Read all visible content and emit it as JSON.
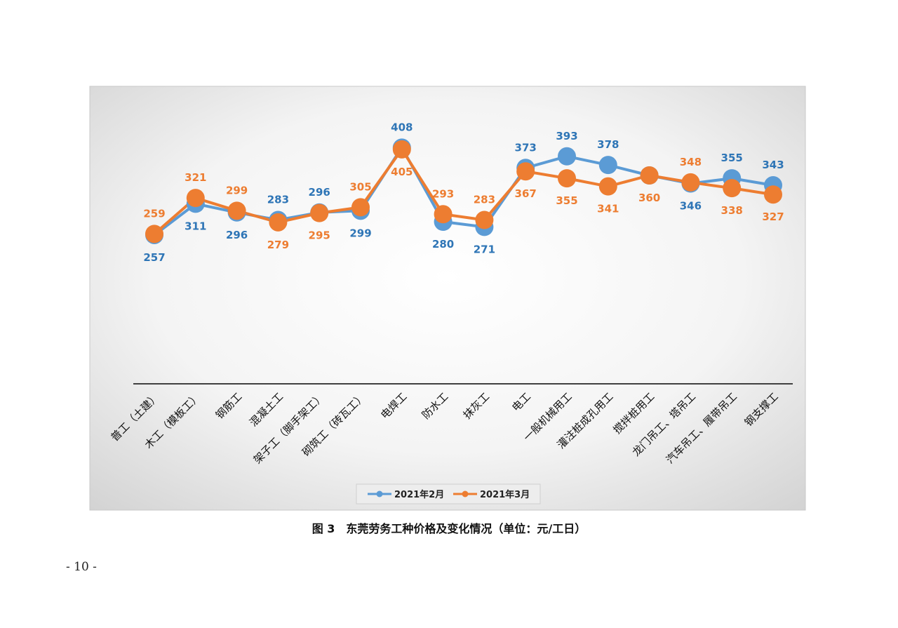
{
  "caption": "图 3　东莞劳务工种价格及变化情况（单位：元/工日）",
  "page_number": "- 10 -",
  "chart_data": {
    "type": "line",
    "title": "",
    "xlabel": "",
    "ylabel": "",
    "ylim": [
      0,
      520
    ],
    "grid": false,
    "legend_position": "bottom",
    "categories": [
      "普工（土建）",
      "木工（模板工）",
      "钢筋工",
      "混凝土工",
      "架子工（脚手架工）",
      "砌筑工（砖瓦工）",
      "电焊工",
      "防水工",
      "抹灰工",
      "电工",
      "一般机械用工",
      "灌注桩成孔用工",
      "搅拌桩用工",
      "龙门吊工、塔吊工",
      "汽车吊工、履带吊工",
      "钢支撑工"
    ],
    "series": [
      {
        "name": "2021年2月",
        "color": "#5B9BD5",
        "label_color": "#2E75B6",
        "values": [
          257,
          311,
          296,
          283,
          296,
          299,
          408,
          280,
          271,
          373,
          393,
          378,
          360,
          346,
          355,
          343
        ],
        "label_positions": [
          "below",
          "below",
          "below",
          "above",
          "above",
          "below",
          "above",
          "below",
          "below",
          "above",
          "above",
          "above",
          "hidden",
          "below",
          "above",
          "above"
        ]
      },
      {
        "name": "2021年3月",
        "color": "#ED7D31",
        "label_color": "#ED7D31",
        "values": [
          259,
          321,
          299,
          279,
          295,
          305,
          405,
          293,
          283,
          367,
          355,
          341,
          360,
          348,
          338,
          327
        ],
        "label_positions": [
          "above",
          "above",
          "above",
          "below",
          "below",
          "above",
          "below",
          "above",
          "above",
          "below",
          "below",
          "below",
          "below",
          "above",
          "below",
          "below"
        ]
      }
    ]
  }
}
